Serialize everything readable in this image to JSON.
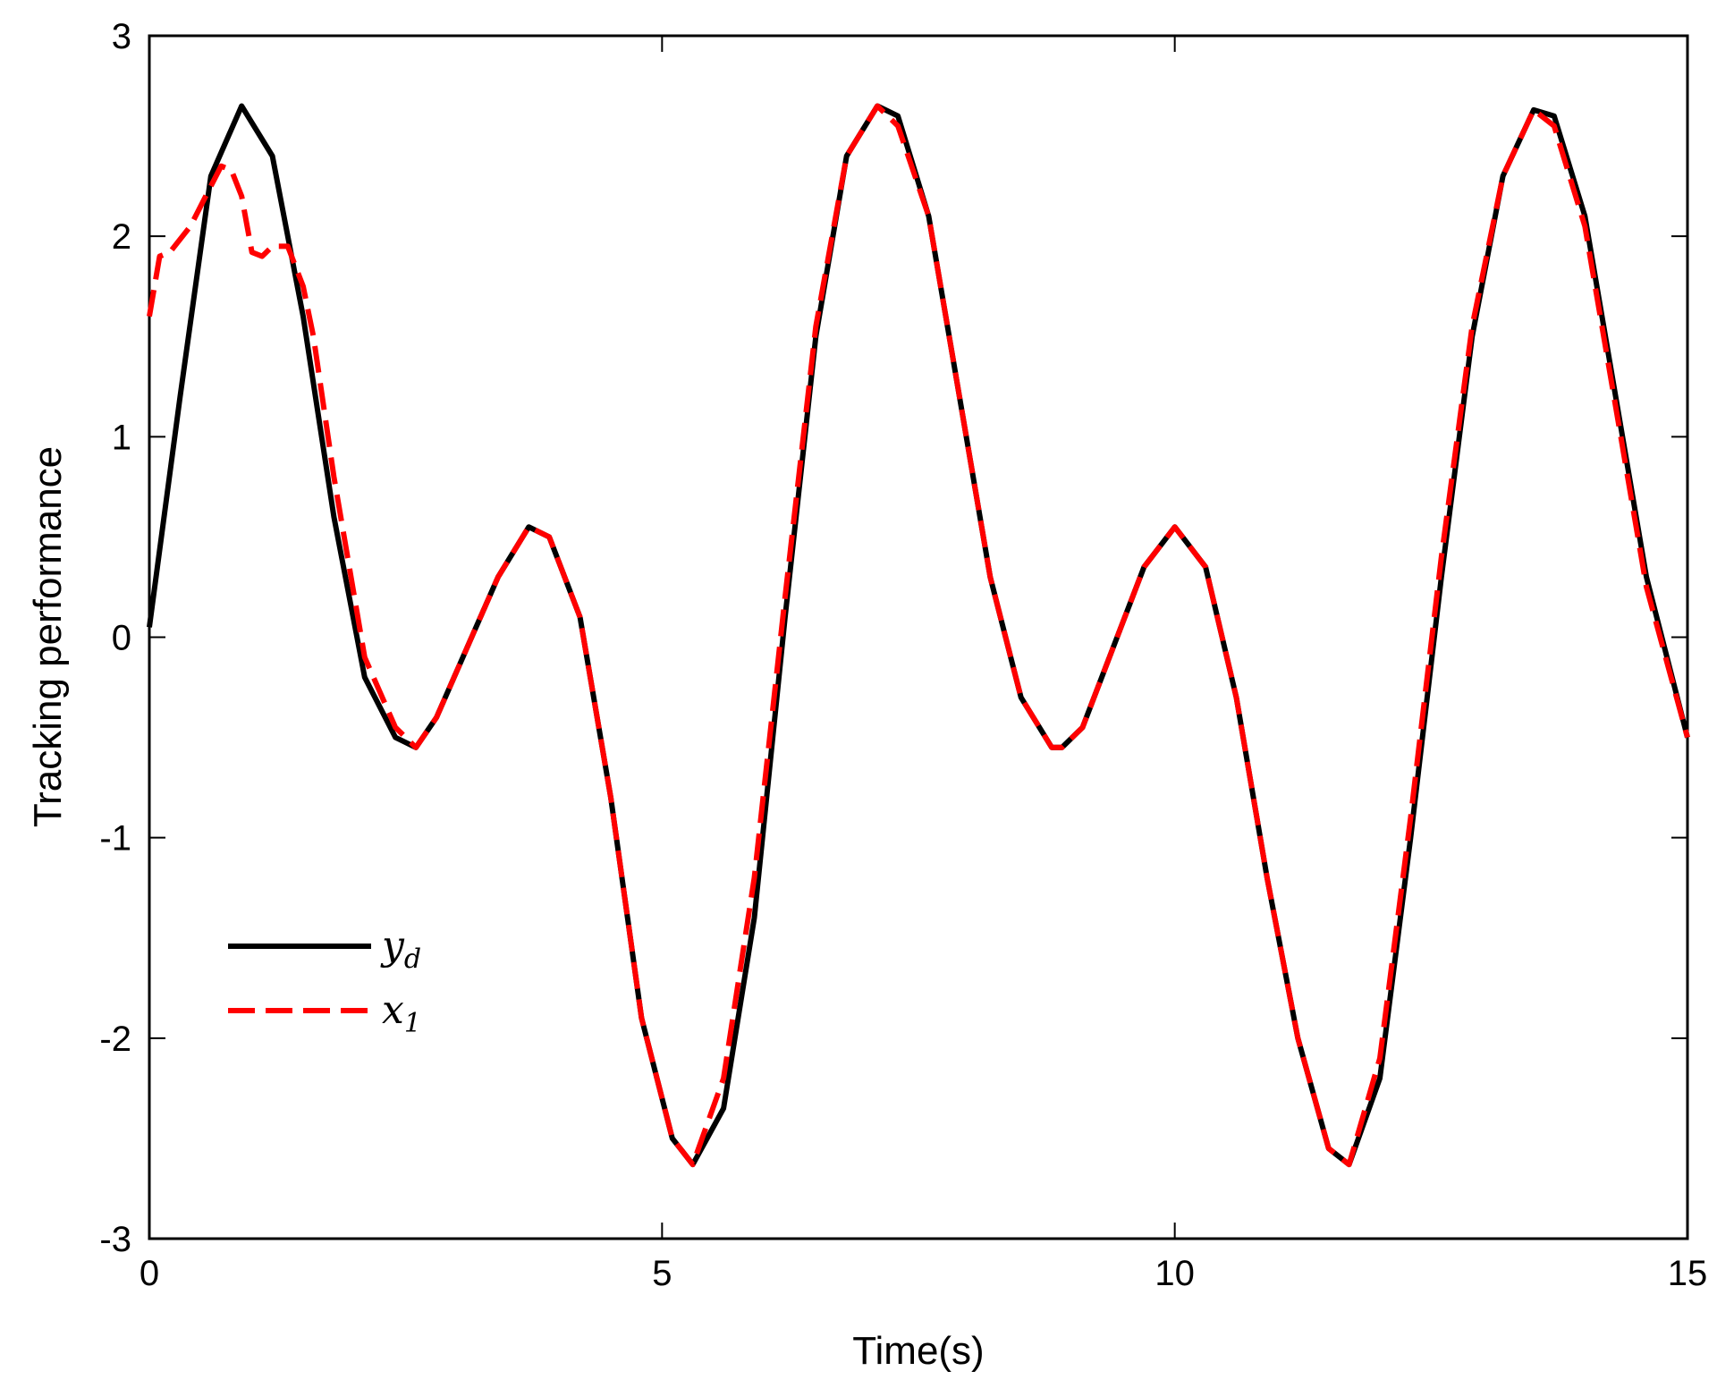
{
  "chart_data": {
    "type": "line",
    "title": "",
    "xlabel": "Time(s)",
    "ylabel": "Tracking performance",
    "xlim": [
      0,
      15
    ],
    "ylim": [
      -3,
      3
    ],
    "xticks": [
      "0",
      "5",
      "10",
      "15"
    ],
    "yticks": [
      "3",
      "2",
      "1",
      "0",
      "-1",
      "-2",
      "-3"
    ],
    "grid": false,
    "legend_position": "lower-left",
    "series": [
      {
        "name": "y_d",
        "legend_main": "y",
        "legend_sub": "d",
        "color": "#000000",
        "style": "solid",
        "x": [
          0,
          0.3,
          0.6,
          0.9,
          1.2,
          1.5,
          1.8,
          2.1,
          2.4,
          2.6,
          2.8,
          3.1,
          3.4,
          3.7,
          3.9,
          4.2,
          4.5,
          4.8,
          5.1,
          5.3,
          5.6,
          5.9,
          6.2,
          6.5,
          6.8,
          7.1,
          7.3,
          7.6,
          7.9,
          8.2,
          8.5,
          8.8,
          8.9,
          9.1,
          9.4,
          9.7,
          10.0,
          10.3,
          10.6,
          10.9,
          11.2,
          11.5,
          11.7,
          12.0,
          12.3,
          12.6,
          12.9,
          13.2,
          13.5,
          13.7,
          14.0,
          14.3,
          14.6,
          15.0
        ],
        "y": [
          0.05,
          1.2,
          2.3,
          2.65,
          2.4,
          1.6,
          0.6,
          -0.2,
          -0.5,
          -0.55,
          -0.4,
          -0.05,
          0.3,
          0.55,
          0.5,
          0.1,
          -0.8,
          -1.9,
          -2.5,
          -2.63,
          -2.35,
          -1.4,
          0.1,
          1.5,
          2.4,
          2.65,
          2.6,
          2.1,
          1.2,
          0.3,
          -0.3,
          -0.55,
          -0.55,
          -0.45,
          -0.05,
          0.35,
          0.55,
          0.35,
          -0.3,
          -1.2,
          -2.0,
          -2.55,
          -2.63,
          -2.2,
          -1.0,
          0.3,
          1.5,
          2.3,
          2.63,
          2.6,
          2.1,
          1.2,
          0.3,
          -0.5
        ]
      },
      {
        "name": "x_1",
        "legend_main": "x",
        "legend_sub": "1",
        "color": "#ff0000",
        "style": "dashed",
        "x": [
          0,
          0.1,
          0.2,
          0.4,
          0.55,
          0.7,
          0.8,
          0.9,
          1.0,
          1.1,
          1.2,
          1.35,
          1.5,
          1.6,
          1.8,
          2.1,
          2.4,
          2.6,
          2.8,
          3.1,
          3.4,
          3.7,
          3.9,
          4.2,
          4.5,
          4.8,
          5.1,
          5.3,
          5.6,
          5.9,
          6.2,
          6.5,
          6.8,
          7.1,
          7.3,
          7.6,
          7.9,
          8.2,
          8.5,
          8.8,
          8.9,
          9.1,
          9.4,
          9.7,
          10.0,
          10.3,
          10.6,
          10.9,
          11.2,
          11.5,
          11.7,
          12.0,
          12.3,
          12.6,
          12.9,
          13.2,
          13.5,
          13.7,
          14.0,
          14.3,
          14.6,
          15.0
        ],
        "y": [
          1.6,
          1.9,
          1.92,
          2.05,
          2.2,
          2.35,
          2.33,
          2.2,
          1.92,
          1.9,
          1.95,
          1.95,
          1.75,
          1.5,
          0.8,
          -0.1,
          -0.45,
          -0.55,
          -0.4,
          -0.05,
          0.3,
          0.55,
          0.5,
          0.1,
          -0.8,
          -1.9,
          -2.5,
          -2.63,
          -2.2,
          -1.2,
          0.2,
          1.55,
          2.4,
          2.65,
          2.55,
          2.1,
          1.2,
          0.3,
          -0.3,
          -0.55,
          -0.55,
          -0.45,
          -0.05,
          0.35,
          0.55,
          0.35,
          -0.3,
          -1.2,
          -2.0,
          -2.55,
          -2.63,
          -2.1,
          -0.9,
          0.4,
          1.55,
          2.3,
          2.63,
          2.55,
          2.05,
          1.15,
          0.25,
          -0.5
        ]
      }
    ]
  }
}
